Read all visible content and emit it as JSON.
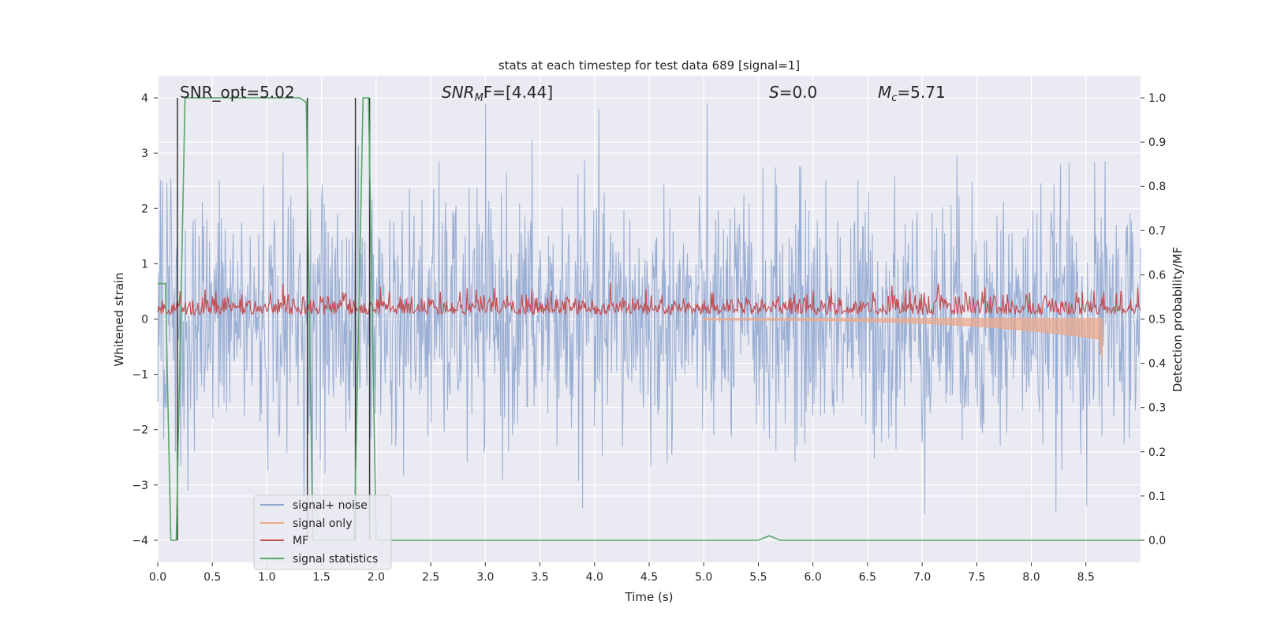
{
  "chart_data": {
    "type": "line",
    "title": "stats at each timestep for test data 689 [signal=1]",
    "xlabel": "Time (s)",
    "ylabel": "Whitened strain",
    "y2label": "Detection probability/MF",
    "xlim": [
      0,
      9.0
    ],
    "ylim": [
      -4.4,
      4.4
    ],
    "y2lim": [
      -0.05,
      1.05
    ],
    "xticks": [
      "0.0",
      "0.5",
      "1.0",
      "1.5",
      "2.0",
      "2.5",
      "3.0",
      "3.5",
      "4.0",
      "4.5",
      "5.0",
      "5.5",
      "6.0",
      "6.5",
      "7.0",
      "7.5",
      "8.0",
      "8.5"
    ],
    "yticks": [
      "4",
      "3",
      "2",
      "1",
      "0",
      "−1",
      "−2",
      "−3",
      "−4"
    ],
    "y2ticks": [
      "1.0",
      "0.9",
      "0.8",
      "0.7",
      "0.6",
      "0.5",
      "0.4",
      "0.3",
      "0.2",
      "0.1",
      "0.0"
    ],
    "grid": true,
    "legend_position": "lower-left",
    "annotations": {
      "snr_opt": "SNR_opt=5.02",
      "snr_mf_base": "SNR",
      "snr_mf_sub": "M",
      "snr_mf_rest": "F=[4.44]",
      "s_italic": "S",
      "s_rest": "=0.0",
      "mc_base": "M",
      "mc_sub": "c",
      "mc_rest": "=5.71"
    },
    "series": [
      {
        "name": "signal+ noise",
        "color": "#8fa6cf",
        "description_values": {
          "mean": 0.0,
          "envelope": [
            -3.8,
            3.9
          ]
        }
      },
      {
        "name": "signal only",
        "color": "#e9a98c",
        "chirp": {
          "t_end": 8.65,
          "amp_end": -0.7
        }
      },
      {
        "name": "MF",
        "color": "#c44e52",
        "axis": "right",
        "baseline": 0.51,
        "range": [
          0.5,
          0.6
        ]
      },
      {
        "name": "signal statistics",
        "color": "#55a868",
        "axis": "right",
        "x": [
          0.0,
          0.07,
          0.12,
          0.17,
          0.25,
          1.3,
          1.36,
          1.42,
          1.8,
          1.88,
          1.93,
          2.0,
          5.5,
          5.6,
          5.7,
          9.0
        ],
        "y": [
          0.58,
          0.58,
          0.0,
          0.0,
          1.0,
          1.0,
          0.99,
          0.0,
          0.0,
          1.0,
          1.0,
          0.0,
          0.0,
          0.01,
          0.0,
          0.0
        ]
      }
    ],
    "vlines": [
      0.18,
      1.37,
      1.81,
      1.94
    ],
    "vline_color": "#333333"
  }
}
